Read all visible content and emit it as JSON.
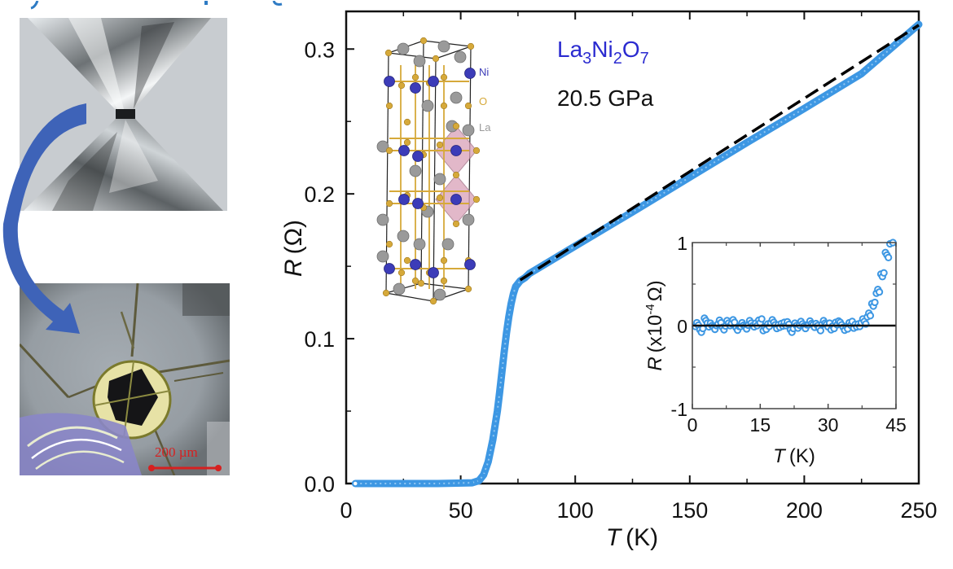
{
  "figure": {
    "left_panel": {
      "top_photo": "diamond-anvil-cell",
      "bottom_photo": "sample-chamber-with-electrodes",
      "scale_bar_label": "200 µm"
    },
    "crystal_structure": {
      "legend": [
        {
          "label": "Ni",
          "color": "#3c3cb8"
        },
        {
          "label": "O",
          "color": "#d6a93a"
        },
        {
          "label": "La",
          "color": "#9a9a9a"
        }
      ]
    },
    "annotations": {
      "compound_parts": [
        "La",
        "3",
        "Ni",
        "2",
        "O",
        "7"
      ],
      "pressure": "20.5 GPa"
    }
  },
  "chart_data": [
    {
      "type": "scatter",
      "name": "main",
      "title": "",
      "xlabel_italic": "T",
      "xlabel_unit": "(K)",
      "ylabel_italic": "R",
      "ylabel_unit": "(Ω)",
      "xlim": [
        0,
        250
      ],
      "ylim": [
        0,
        0.326
      ],
      "xticks": [
        0,
        50,
        100,
        150,
        200,
        250
      ],
      "xtick_labels": [
        "0",
        "50",
        "100",
        "150",
        "200",
        "250"
      ],
      "yticks": [
        0.0,
        0.1,
        0.2,
        0.3
      ],
      "ytick_labels": [
        "0.0",
        "0.1",
        "0.2",
        "0.3"
      ],
      "grid": false,
      "series": [
        {
          "name": "R(T) data",
          "color": "#3d97e3",
          "x": [
            4,
            20,
            40,
            55,
            58,
            60,
            62,
            64,
            66,
            67,
            68,
            69,
            70,
            71,
            72,
            73,
            74,
            76,
            78,
            80,
            90,
            100,
            125,
            150,
            175,
            200,
            225,
            250
          ],
          "y": [
            0.0,
            0.0,
            0.0,
            0.0005,
            0.002,
            0.006,
            0.015,
            0.03,
            0.05,
            0.063,
            0.077,
            0.091,
            0.104,
            0.115,
            0.124,
            0.131,
            0.136,
            0.14,
            0.142,
            0.145,
            0.1545,
            0.164,
            0.1875,
            0.2115,
            0.2355,
            0.259,
            0.283,
            0.317
          ]
        },
        {
          "name": "linear fit",
          "color": "#000000",
          "style": "dashed",
          "x": [
            76,
            250
          ],
          "y": [
            0.1405,
            0.3165
          ]
        }
      ]
    },
    {
      "type": "scatter",
      "name": "inset",
      "xlabel_italic": "T",
      "xlabel_unit": "(K)",
      "ylabel_italic": "R",
      "ylabel_unit": "(x10",
      "ylabel_exp": "-4",
      "ylabel_tail": "Ω)",
      "xlim": [
        0,
        45
      ],
      "ylim": [
        -1,
        1
      ],
      "xticks": [
        0,
        15,
        30,
        45
      ],
      "xtick_labels": [
        "0",
        "15",
        "30",
        "45"
      ],
      "yticks": [
        -1,
        0,
        1
      ],
      "ytick_labels": [
        "-1",
        "0",
        "1"
      ],
      "zero_line": true,
      "series": [
        {
          "name": "low-T R(T)",
          "color": "#3d97e3",
          "x": [
            1,
            2,
            3,
            4,
            5,
            6,
            7,
            8,
            9,
            10,
            11,
            12,
            13,
            14,
            15,
            16,
            17,
            18,
            19,
            20,
            21,
            22,
            23,
            24,
            25,
            26,
            27,
            28,
            29,
            30,
            31,
            32,
            33,
            34,
            35,
            36,
            37,
            38,
            39,
            40,
            41,
            42,
            43,
            44
          ],
          "y": [
            0.02,
            -0.05,
            0.06,
            0.0,
            -0.03,
            0.05,
            -0.02,
            0.03,
            0.04,
            -0.04,
            0.02,
            -0.01,
            0.03,
            0.0,
            0.05,
            -0.03,
            0.02,
            0.04,
            -0.02,
            0.01,
            0.03,
            -0.05,
            0.0,
            0.02,
            -0.02,
            0.04,
            0.01,
            -0.03,
            0.03,
            0.0,
            -0.02,
            0.04,
            0.01,
            -0.04,
            0.02,
            0.0,
            0.02,
            0.05,
            0.12,
            0.25,
            0.42,
            0.62,
            0.85,
            1.0
          ]
        }
      ]
    }
  ]
}
